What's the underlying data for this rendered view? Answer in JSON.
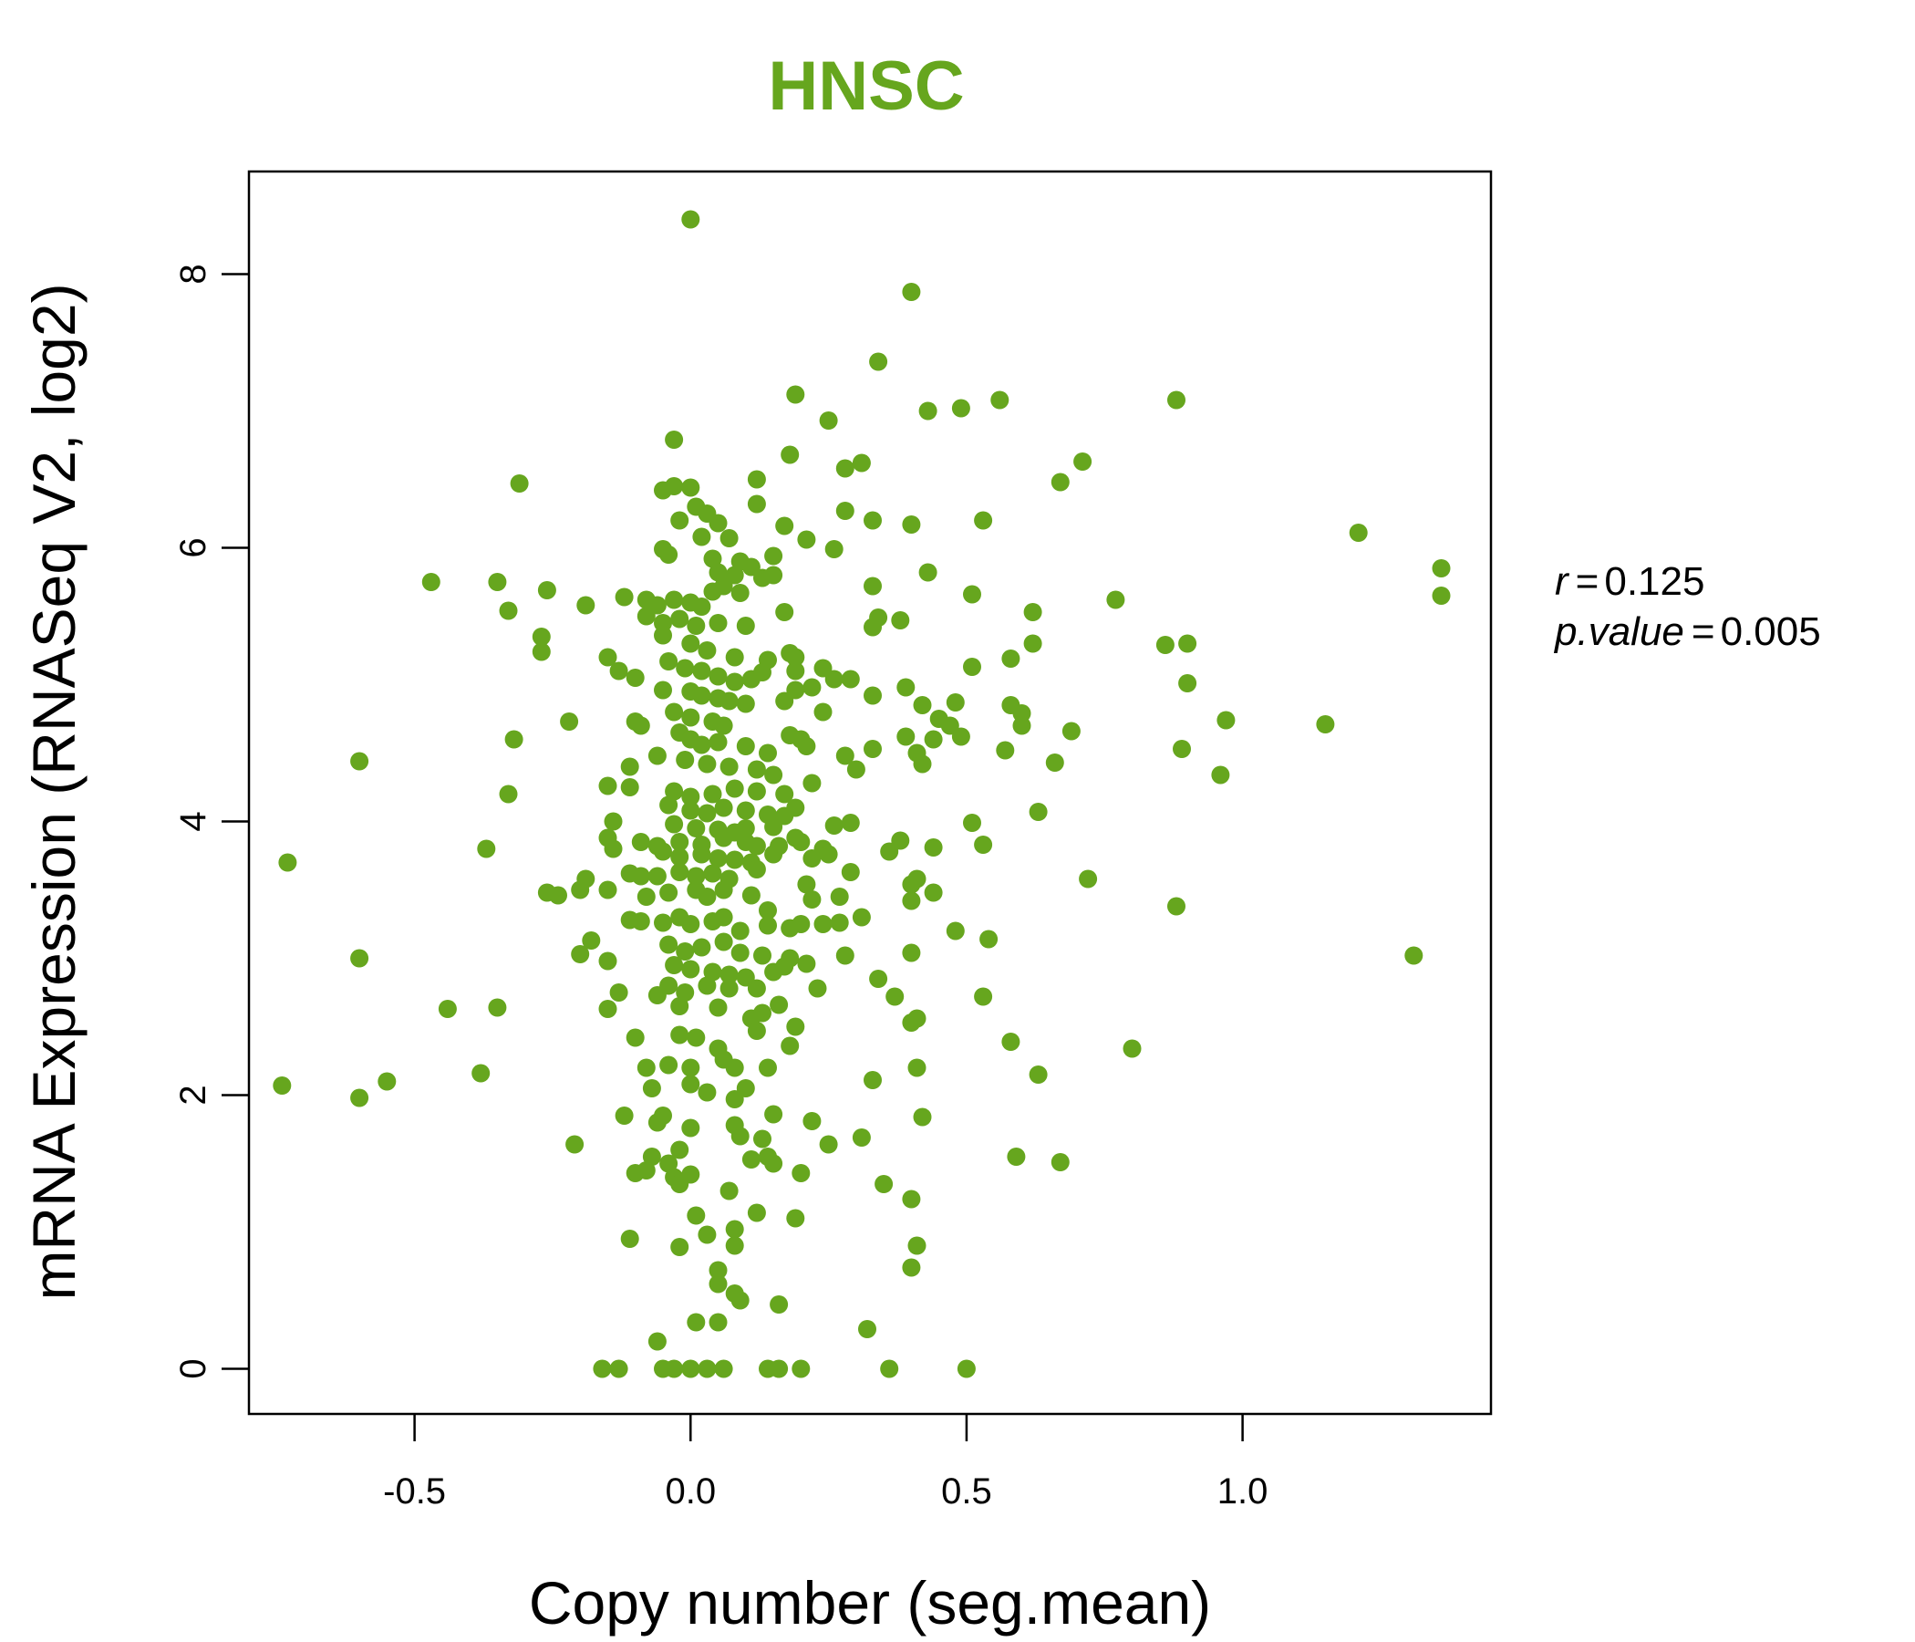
{
  "chart_data": {
    "type": "scatter",
    "title": "HNSC",
    "xlabel": "Copy number (seg.mean)",
    "ylabel": "mRNA Expression (RNASeq V2, log2)",
    "xlim": [
      -0.8,
      1.45
    ],
    "ylim": [
      -0.33,
      8.75
    ],
    "x_ticks": [
      -0.5,
      0.0,
      0.5,
      1.0
    ],
    "x_tick_labels": [
      "-0.5",
      "0.0",
      "0.5",
      "1.0"
    ],
    "y_ticks": [
      0,
      2,
      4,
      6,
      8
    ],
    "y_tick_labels": [
      "0",
      "2",
      "4",
      "6",
      "8"
    ],
    "grid": false,
    "legend": "none",
    "point_color": "#66a61e",
    "title_color": "#66a61e",
    "stats": {
      "r_label": "r",
      "r_value": "0.125",
      "p_label": "p.value",
      "p_value": "0.005"
    },
    "points": [
      [
        0.0,
        8.4
      ],
      [
        0.4,
        7.87
      ],
      [
        0.34,
        7.36
      ],
      [
        0.19,
        7.12
      ],
      [
        0.25,
        6.93
      ],
      [
        0.43,
        7.0
      ],
      [
        0.49,
        7.02
      ],
      [
        0.56,
        7.08
      ],
      [
        0.88,
        7.08
      ],
      [
        -0.03,
        6.79
      ],
      [
        0.18,
        6.68
      ],
      [
        0.28,
        6.58
      ],
      [
        0.31,
        6.62
      ],
      [
        0.67,
        6.48
      ],
      [
        0.71,
        6.63
      ],
      [
        -0.31,
        6.47
      ],
      [
        -0.05,
        6.42
      ],
      [
        -0.03,
        6.45
      ],
      [
        0.0,
        6.44
      ],
      [
        0.12,
        6.5
      ],
      [
        0.01,
        6.3
      ],
      [
        0.03,
        6.25
      ],
      [
        0.12,
        6.32
      ],
      [
        0.28,
        6.27
      ],
      [
        0.33,
        6.2
      ],
      [
        0.4,
        6.17
      ],
      [
        0.53,
        6.2
      ],
      [
        1.21,
        6.11
      ],
      [
        -0.02,
        6.2
      ],
      [
        0.05,
        6.18
      ],
      [
        0.17,
        6.16
      ],
      [
        0.02,
        6.08
      ],
      [
        0.07,
        6.07
      ],
      [
        0.21,
        6.06
      ],
      [
        0.26,
        5.99
      ],
      [
        -0.05,
        5.99
      ],
      [
        -0.04,
        5.95
      ],
      [
        0.04,
        5.92
      ],
      [
        0.15,
        5.94
      ],
      [
        0.09,
        5.9
      ],
      [
        0.11,
        5.86
      ],
      [
        0.05,
        5.82
      ],
      [
        0.08,
        5.8
      ],
      [
        0.13,
        5.78
      ],
      [
        0.15,
        5.8
      ],
      [
        -0.47,
        5.75
      ],
      [
        -0.35,
        5.75
      ],
      [
        -0.26,
        5.69
      ],
      [
        -0.19,
        5.58
      ],
      [
        -0.12,
        5.64
      ],
      [
        -0.08,
        5.62
      ],
      [
        -0.06,
        5.58
      ],
      [
        -0.03,
        5.62
      ],
      [
        0.0,
        5.6
      ],
      [
        0.02,
        5.57
      ],
      [
        0.04,
        5.68
      ],
      [
        0.06,
        5.72
      ],
      [
        0.09,
        5.67
      ],
      [
        0.33,
        5.72
      ],
      [
        0.43,
        5.82
      ],
      [
        0.51,
        5.66
      ],
      [
        0.62,
        5.53
      ],
      [
        0.77,
        5.62
      ],
      [
        1.36,
        5.85
      ],
      [
        1.36,
        5.65
      ],
      [
        -0.33,
        5.54
      ],
      [
        -0.08,
        5.5
      ],
      [
        -0.05,
        5.45
      ],
      [
        -0.02,
        5.48
      ],
      [
        0.01,
        5.43
      ],
      [
        0.05,
        5.45
      ],
      [
        0.1,
        5.43
      ],
      [
        0.17,
        5.53
      ],
      [
        0.34,
        5.49
      ],
      [
        0.38,
        5.47
      ],
      [
        0.33,
        5.42
      ],
      [
        -0.27,
        5.35
      ],
      [
        -0.27,
        5.24
      ],
      [
        -0.05,
        5.36
      ],
      [
        0.0,
        5.3
      ],
      [
        0.03,
        5.25
      ],
      [
        0.08,
        5.2
      ],
      [
        0.14,
        5.18
      ],
      [
        0.18,
        5.23
      ],
      [
        0.19,
        5.2
      ],
      [
        0.58,
        5.19
      ],
      [
        0.62,
        5.3
      ],
      [
        0.86,
        5.29
      ],
      [
        0.9,
        5.3
      ],
      [
        -0.15,
        5.2
      ],
      [
        -0.13,
        5.1
      ],
      [
        -0.1,
        5.05
      ],
      [
        -0.04,
        5.17
      ],
      [
        -0.01,
        5.12
      ],
      [
        0.02,
        5.1
      ],
      [
        0.05,
        5.06
      ],
      [
        0.08,
        5.02
      ],
      [
        0.11,
        5.04
      ],
      [
        0.13,
        5.09
      ],
      [
        0.19,
        5.1
      ],
      [
        0.24,
        5.12
      ],
      [
        0.26,
        5.04
      ],
      [
        0.29,
        5.04
      ],
      [
        0.51,
        5.13
      ],
      [
        0.9,
        5.01
      ],
      [
        -0.05,
        4.96
      ],
      [
        0.0,
        4.95
      ],
      [
        0.02,
        4.92
      ],
      [
        0.05,
        4.9
      ],
      [
        0.07,
        4.88
      ],
      [
        0.1,
        4.86
      ],
      [
        0.17,
        4.88
      ],
      [
        0.19,
        4.96
      ],
      [
        0.22,
        4.98
      ],
      [
        0.33,
        4.92
      ],
      [
        0.39,
        4.98
      ],
      [
        0.42,
        4.85
      ],
      [
        0.48,
        4.87
      ],
      [
        0.58,
        4.85
      ],
      [
        0.6,
        4.79
      ],
      [
        -0.03,
        4.8
      ],
      [
        0.0,
        4.76
      ],
      [
        0.04,
        4.73
      ],
      [
        0.06,
        4.7
      ],
      [
        0.24,
        4.8
      ],
      [
        0.45,
        4.75
      ],
      [
        0.47,
        4.7
      ],
      [
        0.6,
        4.7
      ],
      [
        0.69,
        4.66
      ],
      [
        0.97,
        4.74
      ],
      [
        1.15,
        4.71
      ],
      [
        -0.22,
        4.73
      ],
      [
        -0.1,
        4.73
      ],
      [
        -0.09,
        4.7
      ],
      [
        -0.32,
        4.6
      ],
      [
        -0.6,
        4.44
      ],
      [
        -0.02,
        4.65
      ],
      [
        0.0,
        4.6
      ],
      [
        0.02,
        4.56
      ],
      [
        0.05,
        4.58
      ],
      [
        0.1,
        4.55
      ],
      [
        0.14,
        4.5
      ],
      [
        0.18,
        4.63
      ],
      [
        0.2,
        4.6
      ],
      [
        0.21,
        4.55
      ],
      [
        0.28,
        4.48
      ],
      [
        0.33,
        4.53
      ],
      [
        0.39,
        4.62
      ],
      [
        0.41,
        4.5
      ],
      [
        0.42,
        4.42
      ],
      [
        0.44,
        4.6
      ],
      [
        0.49,
        4.62
      ],
      [
        0.57,
        4.52
      ],
      [
        0.66,
        4.43
      ],
      [
        0.89,
        4.53
      ],
      [
        0.96,
        4.34
      ],
      [
        -0.06,
        4.48
      ],
      [
        -0.01,
        4.45
      ],
      [
        0.03,
        4.42
      ],
      [
        0.07,
        4.4
      ],
      [
        0.12,
        4.38
      ],
      [
        0.15,
        4.34
      ],
      [
        0.3,
        4.38
      ],
      [
        -0.11,
        4.4
      ],
      [
        -0.11,
        4.25
      ],
      [
        -0.15,
        4.26
      ],
      [
        -0.33,
        4.2
      ],
      [
        -0.03,
        4.22
      ],
      [
        0.0,
        4.18
      ],
      [
        0.04,
        4.2
      ],
      [
        0.08,
        4.24
      ],
      [
        0.12,
        4.22
      ],
      [
        0.17,
        4.2
      ],
      [
        0.22,
        4.28
      ],
      [
        -0.04,
        4.12
      ],
      [
        0.0,
        4.08
      ],
      [
        0.03,
        4.06
      ],
      [
        0.06,
        4.1
      ],
      [
        0.1,
        4.08
      ],
      [
        0.14,
        4.05
      ],
      [
        0.17,
        4.04
      ],
      [
        0.19,
        4.1
      ],
      [
        0.63,
        4.07
      ],
      [
        -0.14,
        4.0
      ],
      [
        -0.03,
        3.98
      ],
      [
        0.01,
        3.95
      ],
      [
        0.05,
        3.94
      ],
      [
        0.08,
        3.92
      ],
      [
        0.1,
        3.95
      ],
      [
        0.15,
        3.96
      ],
      [
        0.19,
        3.88
      ],
      [
        0.26,
        3.97
      ],
      [
        0.29,
        3.99
      ],
      [
        0.51,
        3.99
      ],
      [
        -0.15,
        3.88
      ],
      [
        -0.09,
        3.85
      ],
      [
        -0.06,
        3.82
      ],
      [
        -0.02,
        3.85
      ],
      [
        0.02,
        3.83
      ],
      [
        0.06,
        3.88
      ],
      [
        0.1,
        3.85
      ],
      [
        0.12,
        3.82
      ],
      [
        0.16,
        3.82
      ],
      [
        0.2,
        3.85
      ],
      [
        0.24,
        3.8
      ],
      [
        0.38,
        3.86
      ],
      [
        0.44,
        3.81
      ],
      [
        0.53,
        3.83
      ],
      [
        -0.73,
        3.7
      ],
      [
        -0.37,
        3.8
      ],
      [
        -0.14,
        3.8
      ],
      [
        -0.05,
        3.78
      ],
      [
        -0.02,
        3.74
      ],
      [
        0.02,
        3.76
      ],
      [
        0.05,
        3.73
      ],
      [
        0.08,
        3.72
      ],
      [
        0.11,
        3.7
      ],
      [
        0.15,
        3.76
      ],
      [
        0.22,
        3.73
      ],
      [
        0.25,
        3.76
      ],
      [
        0.36,
        3.78
      ],
      [
        -0.11,
        3.62
      ],
      [
        -0.09,
        3.6
      ],
      [
        -0.06,
        3.6
      ],
      [
        -0.02,
        3.63
      ],
      [
        0.01,
        3.6
      ],
      [
        0.04,
        3.62
      ],
      [
        0.07,
        3.58
      ],
      [
        0.12,
        3.65
      ],
      [
        0.21,
        3.54
      ],
      [
        0.29,
        3.63
      ],
      [
        0.4,
        3.54
      ],
      [
        0.41,
        3.58
      ],
      [
        0.72,
        3.58
      ],
      [
        -0.26,
        3.48
      ],
      [
        -0.24,
        3.46
      ],
      [
        -0.2,
        3.5
      ],
      [
        -0.19,
        3.58
      ],
      [
        -0.15,
        3.5
      ],
      [
        -0.08,
        3.45
      ],
      [
        -0.04,
        3.48
      ],
      [
        0.01,
        3.5
      ],
      [
        0.03,
        3.45
      ],
      [
        0.06,
        3.5
      ],
      [
        0.11,
        3.46
      ],
      [
        0.14,
        3.35
      ],
      [
        0.22,
        3.43
      ],
      [
        0.27,
        3.45
      ],
      [
        0.4,
        3.42
      ],
      [
        0.44,
        3.48
      ],
      [
        0.88,
        3.38
      ],
      [
        -0.11,
        3.28
      ],
      [
        -0.09,
        3.27
      ],
      [
        -0.05,
        3.26
      ],
      [
        -0.02,
        3.3
      ],
      [
        0.0,
        3.25
      ],
      [
        0.04,
        3.27
      ],
      [
        0.06,
        3.3
      ],
      [
        0.09,
        3.2
      ],
      [
        0.14,
        3.24
      ],
      [
        0.18,
        3.22
      ],
      [
        0.2,
        3.25
      ],
      [
        0.24,
        3.25
      ],
      [
        0.27,
        3.26
      ],
      [
        0.31,
        3.3
      ],
      [
        0.48,
        3.2
      ],
      [
        0.54,
        3.14
      ],
      [
        -0.18,
        3.13
      ],
      [
        -0.2,
        3.03
      ],
      [
        -0.6,
        3.0
      ],
      [
        -0.15,
        2.98
      ],
      [
        -0.04,
        3.1
      ],
      [
        -0.01,
        3.05
      ],
      [
        0.02,
        3.08
      ],
      [
        0.06,
        3.12
      ],
      [
        0.09,
        3.04
      ],
      [
        0.13,
        3.02
      ],
      [
        0.18,
        3.0
      ],
      [
        0.21,
        2.96
      ],
      [
        0.28,
        3.02
      ],
      [
        0.4,
        3.04
      ],
      [
        1.31,
        3.02
      ],
      [
        -0.03,
        2.95
      ],
      [
        0.0,
        2.92
      ],
      [
        0.04,
        2.9
      ],
      [
        0.07,
        2.88
      ],
      [
        0.1,
        2.86
      ],
      [
        0.15,
        2.9
      ],
      [
        0.17,
        2.94
      ],
      [
        -0.06,
        2.73
      ],
      [
        -0.04,
        2.8
      ],
      [
        -0.01,
        2.75
      ],
      [
        0.03,
        2.8
      ],
      [
        0.07,
        2.78
      ],
      [
        0.12,
        2.78
      ],
      [
        0.23,
        2.78
      ],
      [
        0.34,
        2.85
      ],
      [
        0.37,
        2.72
      ],
      [
        0.53,
        2.72
      ],
      [
        -0.44,
        2.63
      ],
      [
        -0.35,
        2.64
      ],
      [
        -0.15,
        2.63
      ],
      [
        -0.13,
        2.75
      ],
      [
        -0.02,
        2.65
      ],
      [
        0.05,
        2.64
      ],
      [
        0.11,
        2.56
      ],
      [
        0.13,
        2.6
      ],
      [
        0.16,
        2.66
      ],
      [
        0.19,
        2.5
      ],
      [
        0.4,
        2.53
      ],
      [
        0.41,
        2.56
      ],
      [
        -0.1,
        2.42
      ],
      [
        -0.02,
        2.44
      ],
      [
        0.01,
        2.42
      ],
      [
        0.05,
        2.34
      ],
      [
        0.12,
        2.47
      ],
      [
        0.18,
        2.36
      ],
      [
        0.58,
        2.39
      ],
      [
        0.8,
        2.34
      ],
      [
        -0.08,
        2.2
      ],
      [
        -0.04,
        2.22
      ],
      [
        0.0,
        2.2
      ],
      [
        0.06,
        2.26
      ],
      [
        0.08,
        2.2
      ],
      [
        0.14,
        2.2
      ],
      [
        0.41,
        2.2
      ],
      [
        0.63,
        2.15
      ],
      [
        -0.38,
        2.16
      ],
      [
        -0.55,
        2.1
      ],
      [
        -0.74,
        2.07
      ],
      [
        -0.6,
        1.98
      ],
      [
        -0.07,
        2.05
      ],
      [
        0.0,
        2.08
      ],
      [
        0.03,
        2.02
      ],
      [
        0.08,
        1.97
      ],
      [
        0.1,
        2.05
      ],
      [
        0.33,
        2.11
      ],
      [
        -0.05,
        1.85
      ],
      [
        -0.12,
        1.85
      ],
      [
        -0.06,
        1.8
      ],
      [
        0.0,
        1.76
      ],
      [
        0.08,
        1.78
      ],
      [
        0.15,
        1.86
      ],
      [
        0.22,
        1.81
      ],
      [
        0.42,
        1.84
      ],
      [
        -0.21,
        1.64
      ],
      [
        0.09,
        1.7
      ],
      [
        0.13,
        1.68
      ],
      [
        0.25,
        1.64
      ],
      [
        0.31,
        1.69
      ],
      [
        -0.07,
        1.55
      ],
      [
        -0.04,
        1.5
      ],
      [
        -0.02,
        1.6
      ],
      [
        0.11,
        1.53
      ],
      [
        0.14,
        1.55
      ],
      [
        0.59,
        1.55
      ],
      [
        0.67,
        1.51
      ],
      [
        -0.1,
        1.43
      ],
      [
        -0.08,
        1.45
      ],
      [
        -0.03,
        1.4
      ],
      [
        -0.02,
        1.35
      ],
      [
        0.0,
        1.42
      ],
      [
        0.15,
        1.5
      ],
      [
        0.2,
        1.43
      ],
      [
        0.35,
        1.35
      ],
      [
        0.07,
        1.3
      ],
      [
        0.4,
        1.24
      ],
      [
        0.01,
        1.12
      ],
      [
        0.12,
        1.14
      ],
      [
        0.19,
        1.1
      ],
      [
        0.03,
        0.98
      ],
      [
        0.08,
        1.02
      ],
      [
        -0.11,
        0.95
      ],
      [
        -0.02,
        0.89
      ],
      [
        0.08,
        0.9
      ],
      [
        0.41,
        0.9
      ],
      [
        0.05,
        0.72
      ],
      [
        0.4,
        0.74
      ],
      [
        0.05,
        0.62
      ],
      [
        0.08,
        0.55
      ],
      [
        0.09,
        0.5
      ],
      [
        0.16,
        0.47
      ],
      [
        0.01,
        0.34
      ],
      [
        0.05,
        0.34
      ],
      [
        0.32,
        0.29
      ],
      [
        -0.06,
        0.2
      ],
      [
        -0.16,
        0.0
      ],
      [
        -0.13,
        0.0
      ],
      [
        -0.05,
        0.0
      ],
      [
        -0.03,
        0.0
      ],
      [
        0.0,
        0.0
      ],
      [
        0.03,
        0.0
      ],
      [
        0.06,
        0.0
      ],
      [
        0.14,
        0.0
      ],
      [
        0.16,
        0.0
      ],
      [
        0.2,
        0.0
      ],
      [
        0.36,
        0.0
      ],
      [
        0.5,
        0.0
      ]
    ]
  }
}
